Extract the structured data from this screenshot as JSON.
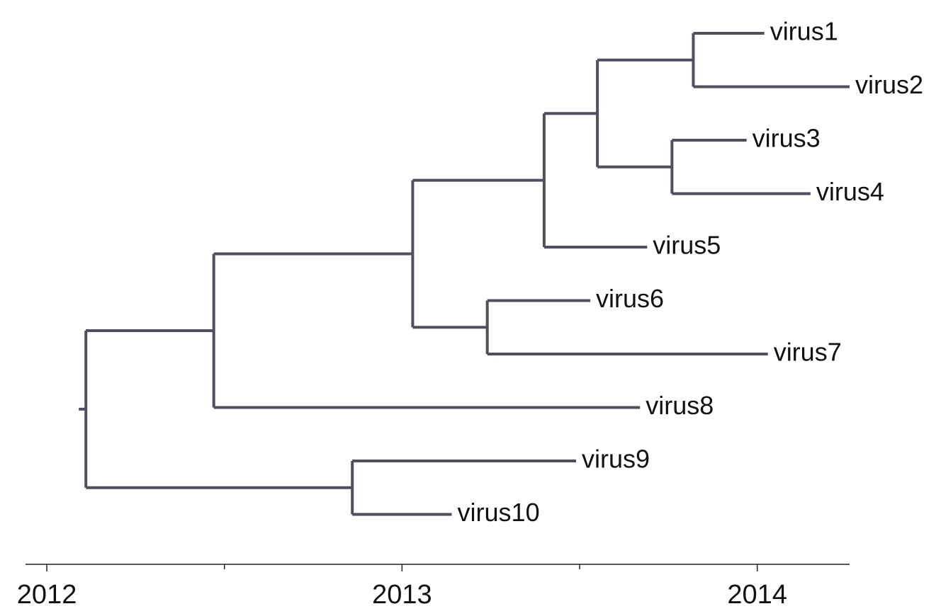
{
  "tree": {
    "branch_color": "#4f4f5f",
    "root_date": 2012.11,
    "nodes": [
      {
        "id": "n1",
        "parent": null,
        "date": 2012.11
      },
      {
        "id": "n2",
        "parent": "n1",
        "date": 2012.47
      },
      {
        "id": "n3",
        "parent": "n2",
        "date": 2013.03
      },
      {
        "id": "n4",
        "parent": "n3",
        "date": 2013.4
      },
      {
        "id": "n5",
        "parent": "n4",
        "date": 2013.55
      },
      {
        "id": "n6",
        "parent": "n5",
        "date": 2013.82
      },
      {
        "id": "n7",
        "parent": "n5",
        "date": 2013.76
      },
      {
        "id": "n8",
        "parent": "n3",
        "date": 2013.24
      },
      {
        "id": "n9",
        "parent": "n1",
        "date": 2012.86
      },
      {
        "id": "virus1",
        "parent": "n6",
        "date": 2014.02,
        "label": "virus1"
      },
      {
        "id": "virus2",
        "parent": "n6",
        "date": 2014.26,
        "label": "virus2"
      },
      {
        "id": "virus3",
        "parent": "n7",
        "date": 2013.97,
        "label": "virus3"
      },
      {
        "id": "virus4",
        "parent": "n7",
        "date": 2014.15,
        "label": "virus4"
      },
      {
        "id": "virus5",
        "parent": "n4",
        "date": 2013.69,
        "label": "virus5"
      },
      {
        "id": "virus6",
        "parent": "n8",
        "date": 2013.53,
        "label": "virus6"
      },
      {
        "id": "virus7",
        "parent": "n8",
        "date": 2014.03,
        "label": "virus7"
      },
      {
        "id": "virus8",
        "parent": "n2",
        "date": 2013.67,
        "label": "virus8"
      },
      {
        "id": "virus9",
        "parent": "n9",
        "date": 2013.49,
        "label": "virus9"
      },
      {
        "id": "virus10",
        "parent": "n9",
        "date": 2013.14,
        "label": "virus10"
      }
    ],
    "tip_order": [
      "virus1",
      "virus2",
      "virus3",
      "virus4",
      "virus5",
      "virus6",
      "virus7",
      "virus8",
      "virus9",
      "virus10"
    ]
  },
  "axis": {
    "min": 2011.94,
    "max": 2014.26,
    "major_ticks": [
      2012,
      2013,
      2014
    ],
    "major_labels": [
      "2012",
      "2013",
      "2014"
    ],
    "minor_ticks": [
      2012.5,
      2013.5
    ]
  }
}
